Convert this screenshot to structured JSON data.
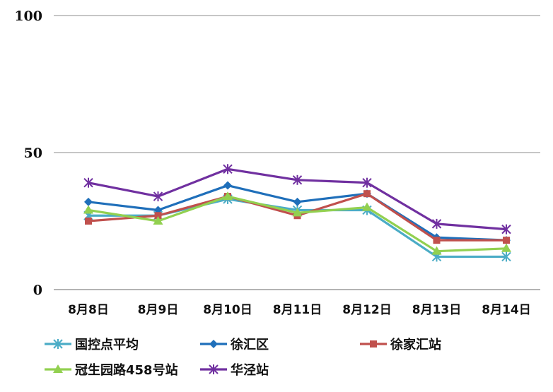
{
  "chart_data": {
    "type": "line",
    "title": "",
    "xlabel": "",
    "ylabel": "",
    "ylim": [
      0,
      100
    ],
    "yticks": [
      "0",
      "50",
      "100"
    ],
    "grid": true,
    "legend_position": "bottom",
    "categories": [
      "8月8日",
      "8月9日",
      "8月10日",
      "8月11日",
      "8月12日",
      "8月13日",
      "8月14日"
    ],
    "series": [
      {
        "name": "国控点平均",
        "color": "#4bacc6",
        "marker": "asterisk",
        "values": [
          27,
          27,
          33,
          29,
          29,
          12,
          12
        ]
      },
      {
        "name": "徐汇区",
        "color": "#1f6fba",
        "marker": "diamond",
        "values": [
          32,
          29,
          38,
          32,
          35,
          19,
          18
        ]
      },
      {
        "name": "徐家汇站",
        "color": "#c0504d",
        "marker": "square",
        "values": [
          25,
          27,
          34,
          27,
          35,
          18,
          18
        ]
      },
      {
        "name": "冠生园路458号站",
        "color": "#92d050",
        "marker": "triangle",
        "values": [
          29,
          25,
          34,
          28,
          30,
          14,
          15
        ]
      },
      {
        "name": "华泾站",
        "color": "#7030a0",
        "marker": "asterisk",
        "values": [
          39,
          34,
          44,
          40,
          39,
          24,
          22
        ]
      }
    ]
  }
}
